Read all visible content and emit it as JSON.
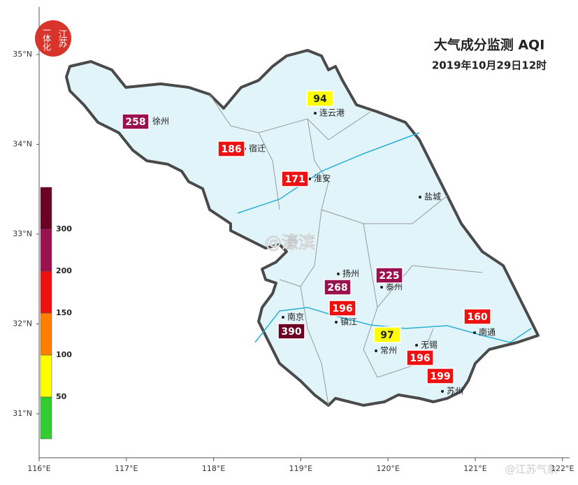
{
  "title": "大气成分监测 AQI",
  "subtitle": "2019年10月29日12时",
  "logo": {
    "right": "江苏",
    "left": "一体化"
  },
  "watermark": "@濠滨",
  "credit": "@江苏气象",
  "lat_ticks": [
    {
      "value": 35,
      "label": "35°N"
    },
    {
      "value": 34,
      "label": "34°N"
    },
    {
      "value": 33,
      "label": "33°N"
    },
    {
      "value": 32,
      "label": "32°N"
    },
    {
      "value": 31,
      "label": "31°N"
    }
  ],
  "lon_ticks": [
    {
      "value": 116,
      "label": "116°E"
    },
    {
      "value": 117,
      "label": "117°E"
    },
    {
      "value": 118,
      "label": "118°E"
    },
    {
      "value": 119,
      "label": "119°E"
    },
    {
      "value": 120,
      "label": "120°E"
    },
    {
      "value": 121,
      "label": "121°E"
    },
    {
      "value": 122,
      "label": "122°E"
    }
  ],
  "legend": {
    "breaks": [
      50,
      100,
      150,
      200,
      300
    ],
    "colors": [
      "#33cc33",
      "#ffff00",
      "#ff8000",
      "#ee1111",
      "#99114f",
      "#6b0024"
    ]
  },
  "cities": [
    {
      "name": "徐州",
      "aqi": 258
    },
    {
      "name": "宿迁",
      "aqi": 186
    },
    {
      "name": "连云港",
      "aqi": 94
    },
    {
      "name": "淮安",
      "aqi": 171
    },
    {
      "name": "盐城",
      "aqi": null
    },
    {
      "name": "扬州",
      "aqi": 268
    },
    {
      "name": "泰州",
      "aqi": 225
    },
    {
      "name": "南京",
      "aqi": 390
    },
    {
      "name": "镇江",
      "aqi": 196
    },
    {
      "name": "常州",
      "aqi": 97
    },
    {
      "name": "无锡",
      "aqi": 196
    },
    {
      "name": "苏州",
      "aqi": 199
    },
    {
      "name": "南通",
      "aqi": 160
    }
  ]
}
